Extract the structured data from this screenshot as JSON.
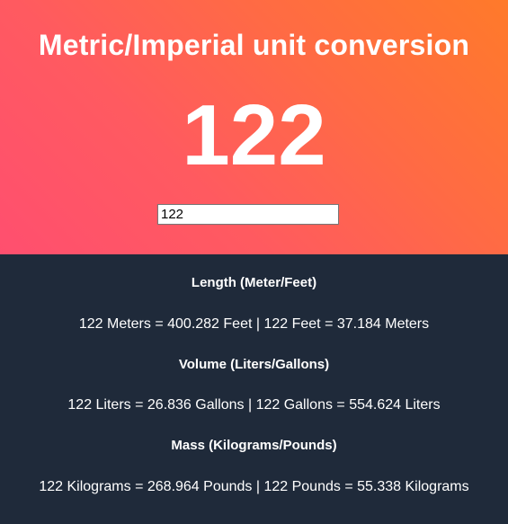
{
  "header": {
    "title": "Metric/Imperial unit conversion",
    "value_display": "122"
  },
  "input": {
    "value": "122"
  },
  "sections": {
    "length": {
      "heading": "Length (Meter/Feet)",
      "text": "122 Meters = 400.282 Feet | 122 Feet = 37.184 Meters"
    },
    "volume": {
      "heading": "Volume (Liters/Gallons)",
      "text": "122 Liters = 26.836 Gallons | 122 Gallons = 554.624 Liters"
    },
    "mass": {
      "heading": "Mass (Kilograms/Pounds)",
      "text": "122 Kilograms = 268.964 Pounds | 122 Pounds = 55.338 Kilograms"
    }
  },
  "colors": {
    "gradient_start": "#ff4f6f",
    "gradient_end": "#ff7a2a",
    "results_background": "#1f2a3a",
    "text": "#ffffff"
  }
}
